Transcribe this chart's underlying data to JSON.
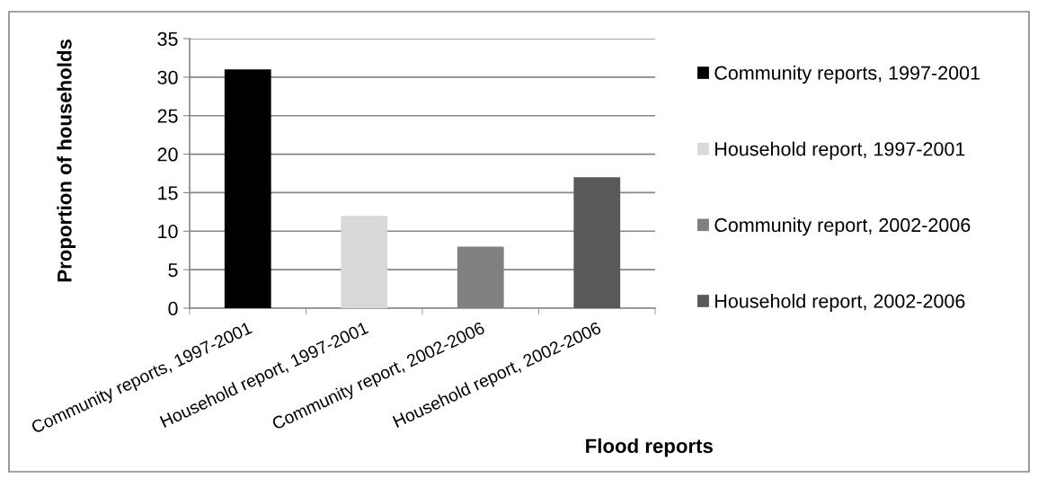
{
  "chart_data": {
    "type": "bar",
    "categories": [
      "Community reports, 1997-2001",
      "Household report, 1997-2001",
      "Community report, 2002-2006",
      "Household report, 2002-2006"
    ],
    "series": [
      {
        "name": "Community reports, 1997-2001",
        "color": "#000000",
        "values": [
          31,
          null,
          null,
          null
        ]
      },
      {
        "name": "Household report, 1997-2001",
        "color": "#d9d9d9",
        "values": [
          null,
          12,
          null,
          null
        ]
      },
      {
        "name": "Community report, 2002-2006",
        "color": "#808080",
        "values": [
          null,
          null,
          8,
          null
        ]
      },
      {
        "name": "Household report, 2002-2006",
        "color": "#595959",
        "values": [
          null,
          null,
          null,
          17
        ]
      }
    ],
    "xlabel": "Flood reports",
    "ylabel": "Proportion of households",
    "ylim": [
      0,
      35
    ],
    "yticks": [
      0,
      5,
      10,
      15,
      20,
      25,
      30,
      35
    ],
    "grid": "y",
    "legend": "right"
  }
}
